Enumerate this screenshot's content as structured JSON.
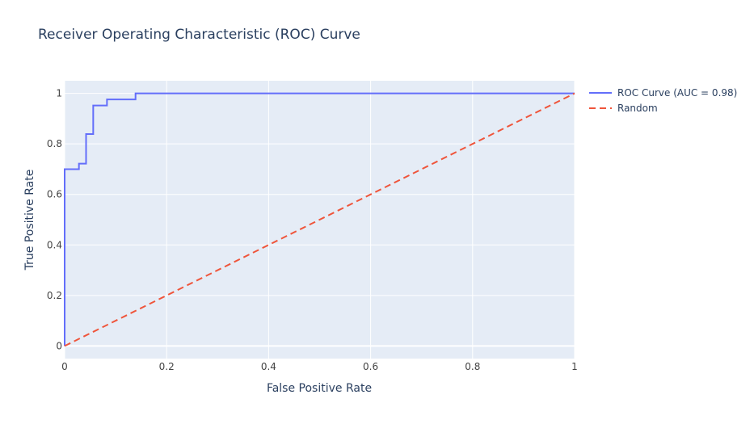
{
  "chart_data": {
    "type": "line",
    "title": "Receiver Operating Characteristic (ROC) Curve",
    "xlabel": "False Positive Rate",
    "ylabel": "True Positive Rate",
    "xlim": [
      0,
      1
    ],
    "ylim": [
      -0.05,
      1.05
    ],
    "x_ticks": [
      0,
      0.2,
      0.4,
      0.6,
      0.8,
      1
    ],
    "x_tick_labels": [
      "0",
      "0.2",
      "0.4",
      "0.6",
      "0.8",
      "1"
    ],
    "y_ticks": [
      0,
      0.2,
      0.4,
      0.6,
      0.8,
      1
    ],
    "y_tick_labels": [
      "0",
      "0.2",
      "0.4",
      "0.6",
      "0.8",
      "1"
    ],
    "grid": true,
    "legend_position": "top-right-outside",
    "series": [
      {
        "name": "ROC Curve (AUC = 0.98)",
        "color": "#636efa",
        "dash": "solid",
        "x": [
          0,
          0,
          0.028,
          0.028,
          0.042,
          0.042,
          0.056,
          0.056,
          0.083,
          0.083,
          0.139,
          0.139,
          1
        ],
        "y": [
          0,
          0.7,
          0.7,
          0.722,
          0.722,
          0.839,
          0.839,
          0.952,
          0.952,
          0.976,
          0.976,
          1,
          1
        ]
      },
      {
        "name": "Random",
        "color": "#ef553b",
        "dash": "dashed",
        "x": [
          0,
          1
        ],
        "y": [
          0,
          1
        ]
      }
    ]
  },
  "colors": {
    "plot_background": "#e5ecf6",
    "grid": "#ffffff",
    "text": "#2a3f5f",
    "tick_text": "#444444"
  }
}
